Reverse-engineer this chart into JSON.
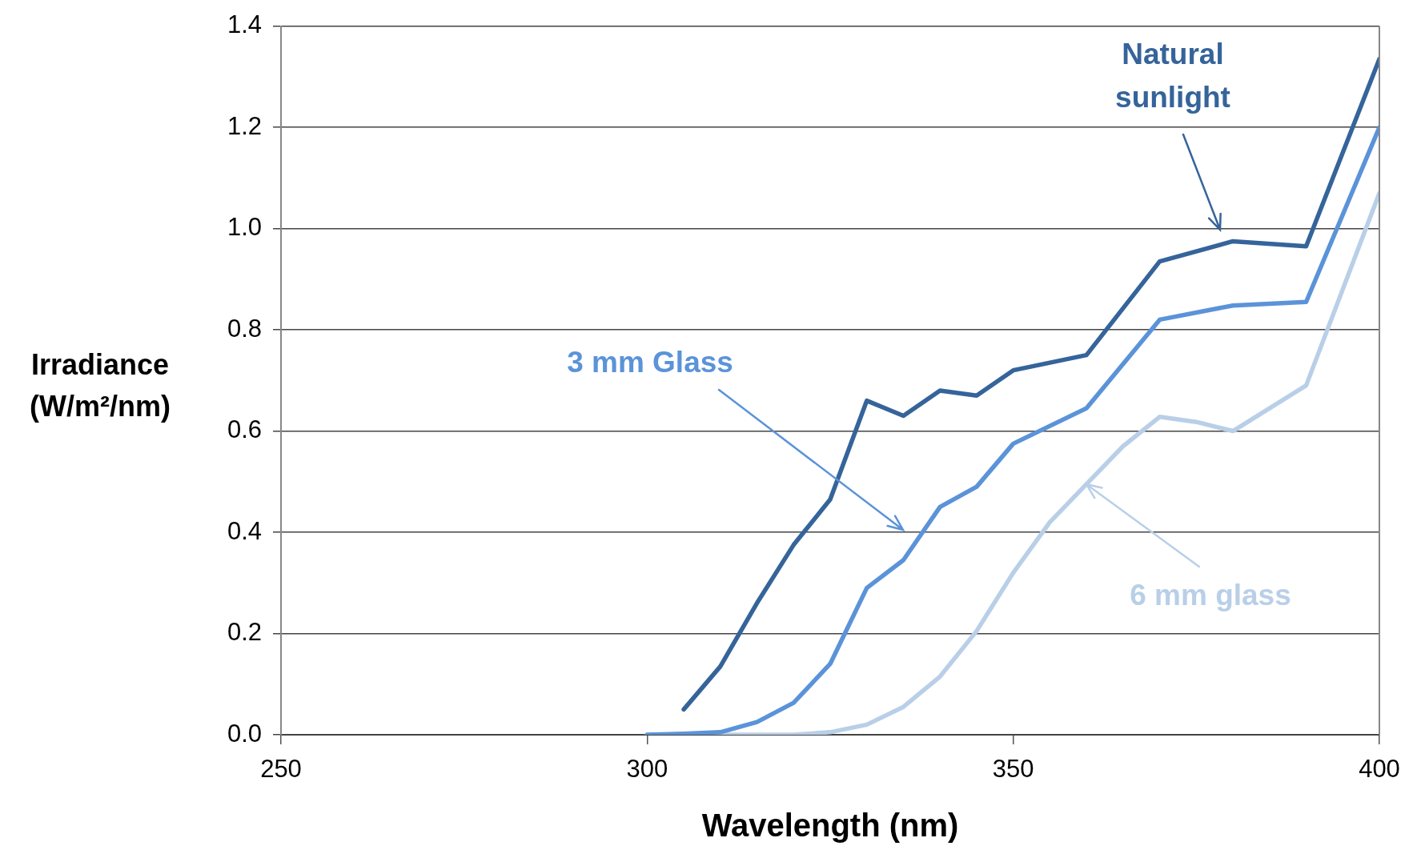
{
  "chart_data": {
    "type": "line",
    "xlabel": "Wavelength (nm)",
    "ylabel": "Irradiance (W/m²/nm)",
    "xlim": [
      250,
      400
    ],
    "xticks": [
      250,
      300,
      350,
      400
    ],
    "ylim": [
      0,
      1.4
    ],
    "yticks": [
      {
        "value": 0,
        "label": "0.0"
      },
      {
        "value": 0.2,
        "label": "0.2"
      },
      {
        "value": 0.4,
        "label": "0.4"
      },
      {
        "value": 0.6,
        "label": "0.6"
      },
      {
        "value": 0.8,
        "label": "0.8"
      },
      {
        "value": 1,
        "label": "1.0"
      },
      {
        "value": 1.2,
        "label": "1.2"
      },
      {
        "value": 1.4,
        "label": "1.4"
      }
    ],
    "grid": "y",
    "legend": false,
    "marker": "none",
    "line_style": "solid",
    "series": [
      {
        "color": "#35649a",
        "x": [
          305,
          310,
          315,
          320,
          325,
          330,
          335,
          340,
          345,
          350,
          360,
          370,
          380,
          390,
          400
        ],
        "values": [
          0.05,
          0.135,
          0.26,
          0.375,
          0.465,
          0.66,
          0.63,
          0.68,
          0.67,
          0.72,
          0.75,
          0.935,
          0.975,
          0.965,
          1.335
        ]
      },
      {
        "color": "#5b93d9",
        "x": [
          300,
          305,
          310,
          315,
          320,
          325,
          330,
          335,
          340,
          345,
          350,
          360,
          370,
          380,
          390,
          400
        ],
        "values": [
          0,
          0.002,
          0.005,
          0.025,
          0.063,
          0.14,
          0.29,
          0.345,
          0.45,
          0.49,
          0.575,
          0.645,
          0.82,
          0.848,
          0.855,
          1.2
        ]
      },
      {
        "color": "#b9cfe8",
        "x": [
          300,
          305,
          310,
          315,
          320,
          325,
          330,
          335,
          340,
          345,
          350,
          355,
          360,
          365,
          370,
          375,
          380,
          385,
          390,
          400
        ],
        "values": [
          0,
          0,
          0,
          0,
          0,
          0.005,
          0.02,
          0.055,
          0.115,
          0.205,
          0.32,
          0.42,
          0.495,
          0.57,
          0.628,
          0.618,
          0.6,
          0.645,
          0.69,
          1.07
        ]
      }
    ],
    "annotations": [
      "Natural sunlight",
      "3 mm Glass",
      {
        "text": "6 mm glass",
        "x": 360,
        "y": 0.495
      }
    ]
  }
}
